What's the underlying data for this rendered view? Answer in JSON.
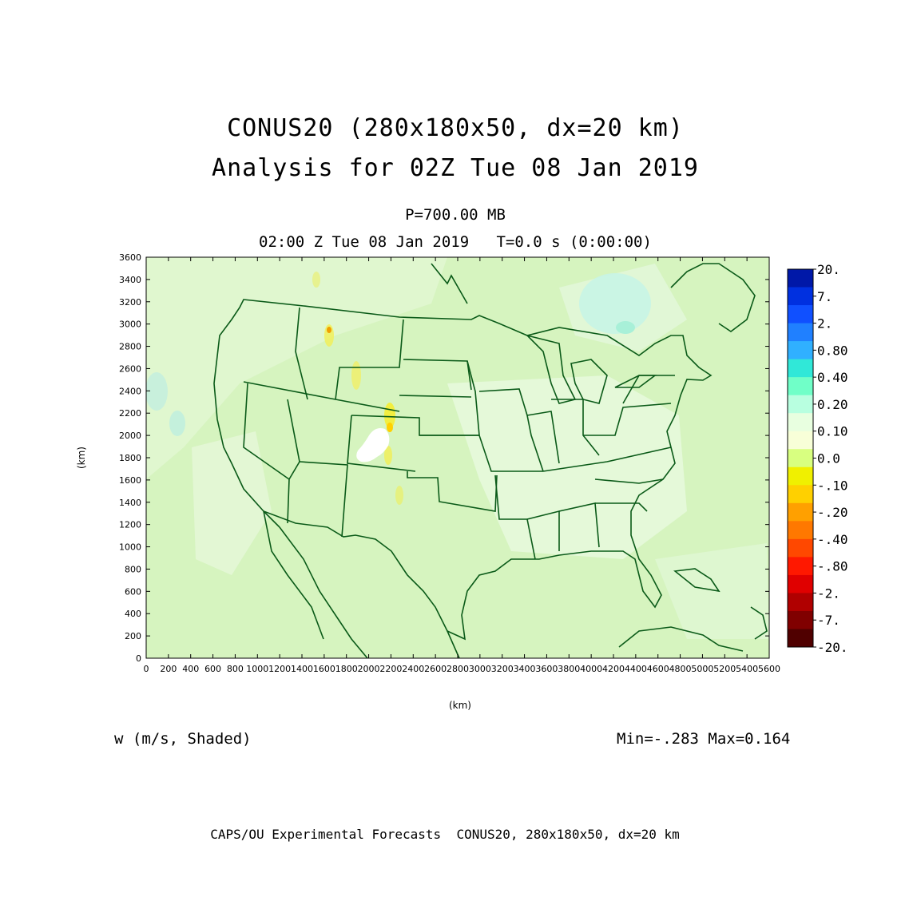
{
  "title": {
    "line1": "CONUS20 (280x180x50, dx=20 km)",
    "line2": "Analysis for 02Z Tue 08 Jan 2019"
  },
  "level": "P=700.00 MB",
  "time": "02:00 Z Tue 08 Jan 2019   T=0.0 s (0:00:00)",
  "variable_label": "w (m/s, Shaded)",
  "minmax": "Min=-.283 Max=0.164",
  "footer": "CAPS/OU Experimental Forecasts  CONUS20, 280x180x50, dx=20 km",
  "axes": {
    "x_label": "(km)",
    "y_label": "(km)",
    "x_ticks": [
      "0",
      "200",
      "400",
      "600",
      "800",
      "1000",
      "1200",
      "1400",
      "1600",
      "1800",
      "2000",
      "2200",
      "2400",
      "2600",
      "2800",
      "3000",
      "3200",
      "3400",
      "3600",
      "3800",
      "4000",
      "4200",
      "4400",
      "4600",
      "4800",
      "5000",
      "5200",
      "5400",
      "5600"
    ],
    "y_ticks": [
      "0",
      "200",
      "400",
      "600",
      "800",
      "1000",
      "1200",
      "1400",
      "1600",
      "1800",
      "2000",
      "2200",
      "2400",
      "2600",
      "2800",
      "3000",
      "3200",
      "3400",
      "3600"
    ],
    "x_range": [
      0,
      5600
    ],
    "y_range": [
      0,
      3600
    ]
  },
  "colorbar": {
    "labels": [
      "20.",
      "7.",
      "2.",
      "0.80",
      "0.40",
      "0.20",
      "0.10",
      "0.0",
      "-.10",
      "-.20",
      "-.40",
      "-.80",
      "-2.",
      "-7.",
      "-20."
    ],
    "colors": [
      "#0018a8",
      "#0030e0",
      "#1050ff",
      "#2080ff",
      "#30b0ff",
      "#30e8d8",
      "#70ffc8",
      "#b8ffe0",
      "#e8ffe0",
      "#f8ffd8",
      "#d8ff80",
      "#f0f000",
      "#ffd000",
      "#ffa000",
      "#ff7800",
      "#ff4800",
      "#ff1800",
      "#e00000",
      "#b00000",
      "#800000",
      "#500000"
    ]
  },
  "colors": {
    "map_lines": "#0a5a18",
    "field_base": "#d8f5c0"
  }
}
